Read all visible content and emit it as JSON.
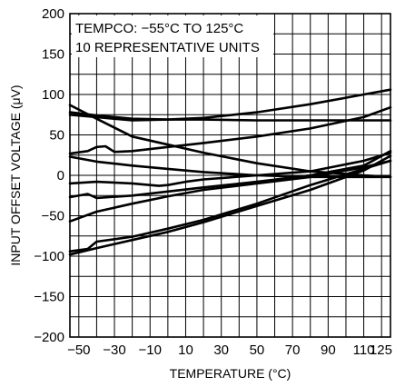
{
  "chart_data": {
    "type": "line",
    "xlabel": "TEMPERATURE (°C)",
    "ylabel": "INPUT OFFSET VOLTAGE (μV)",
    "annotations": [
      "TEMPCO: −55°C TO 125°C",
      "10 REPRESENTATIVE UNITS"
    ],
    "xlim": [
      -55,
      125
    ],
    "ylim": [
      -200,
      200
    ],
    "x_ticks": [
      -50,
      -30,
      -10,
      10,
      30,
      50,
      70,
      90,
      110,
      125
    ],
    "x_tick_labels": [
      "−50",
      "−30",
      "−10",
      "10",
      "30",
      "50",
      "70",
      "90",
      "110",
      "125"
    ],
    "y_ticks": [
      200,
      150,
      100,
      50,
      0,
      -50,
      -100,
      -150,
      -200
    ],
    "y_tick_labels": [
      "200",
      "150",
      "100",
      "50",
      "0",
      "−50",
      "−100",
      "−150",
      "−200"
    ],
    "grid": true,
    "series": [
      {
        "x": [
          -55,
          -40,
          -20,
          0,
          20,
          50,
          80,
          110,
          125
        ],
        "values": [
          78,
          74,
          70,
          69,
          69,
          68,
          68,
          68,
          68
        ]
      },
      {
        "x": [
          -55,
          -40,
          -20,
          0,
          20,
          50,
          80,
          110,
          125
        ],
        "values": [
          75,
          72,
          68,
          69,
          71,
          78,
          88,
          100,
          106
        ]
      },
      {
        "x": [
          -55,
          -40,
          -20,
          0,
          20,
          50,
          80,
          110,
          125
        ],
        "values": [
          87,
          70,
          48,
          38,
          28,
          15,
          5,
          0,
          -2
        ]
      },
      {
        "x": [
          -55,
          -45,
          -40,
          -35,
          -30,
          -20,
          0,
          20,
          50,
          80,
          110,
          125
        ],
        "values": [
          27,
          30,
          35,
          36,
          29,
          30,
          35,
          40,
          48,
          58,
          72,
          84
        ]
      },
      {
        "x": [
          -55,
          -40,
          -20,
          0,
          20,
          50,
          80,
          110,
          125
        ],
        "values": [
          23,
          17,
          12,
          8,
          4,
          0,
          -2,
          -2,
          -2
        ]
      },
      {
        "x": [
          -55,
          -40,
          -20,
          -5,
          0,
          10,
          20,
          50,
          80,
          110,
          125
        ],
        "values": [
          -10,
          -8,
          -10,
          -13,
          -12,
          -8,
          -5,
          0,
          5,
          18,
          28
        ]
      },
      {
        "x": [
          -55,
          -45,
          -40,
          -20,
          0,
          20,
          50,
          80,
          110,
          125
        ],
        "values": [
          -27,
          -23,
          -28,
          -25,
          -20,
          -15,
          -8,
          0,
          12,
          30
        ]
      },
      {
        "x": [
          -55,
          -40,
          -20,
          0,
          20,
          50,
          80,
          110,
          125
        ],
        "values": [
          -57,
          -45,
          -35,
          -26,
          -18,
          -10,
          -2,
          10,
          18
        ]
      },
      {
        "x": [
          -55,
          -45,
          -40,
          -20,
          0,
          20,
          50,
          80,
          110,
          125
        ],
        "values": [
          -94,
          -91,
          -82,
          -76,
          -66,
          -55,
          -35,
          -12,
          8,
          18
        ]
      },
      {
        "x": [
          -55,
          -40,
          -20,
          0,
          20,
          50,
          80,
          110,
          125
        ],
        "values": [
          -98,
          -90,
          -80,
          -70,
          -58,
          -38,
          -18,
          6,
          24
        ]
      }
    ]
  }
}
